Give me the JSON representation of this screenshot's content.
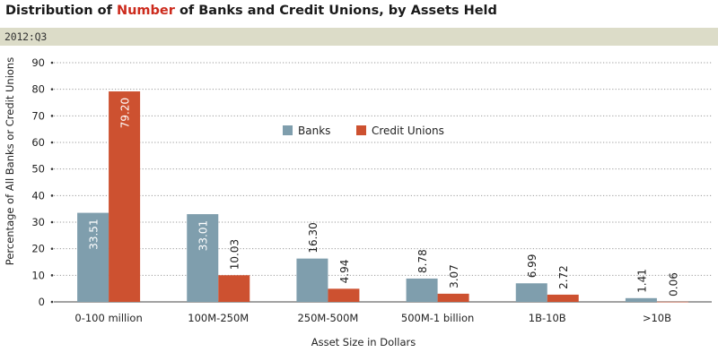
{
  "header": {
    "title_pre": "Distribution of ",
    "title_hl": "Number",
    "title_post": " of Banks and Credit Unions, by Assets Held",
    "period": "2012:Q3"
  },
  "colors": {
    "banks": "#7f9ead",
    "credit_unions": "#cd5130",
    "highlight": "#cc2a1c",
    "subbar": "#dcdcc8"
  },
  "chart_data": {
    "type": "bar",
    "title": "Distribution of Number of Banks and Credit Unions, by Assets Held",
    "subtitle": "2012:Q3",
    "categories": [
      "0-100 million",
      "100M-250M",
      "250M-500M",
      "500M-1 billion",
      "1B-10B",
      ">10B"
    ],
    "series": [
      {
        "name": "Banks",
        "values": [
          33.51,
          33.01,
          16.3,
          8.78,
          6.99,
          1.41
        ],
        "labels": [
          "33.51",
          "33.01",
          "16.30",
          "8.78",
          "6.99",
          "1.41"
        ]
      },
      {
        "name": "Credit Unions",
        "values": [
          79.2,
          10.03,
          4.94,
          3.07,
          2.72,
          0.06
        ],
        "labels": [
          "79.20",
          "10.03",
          "4.94",
          "3.07",
          "2.72",
          "0.06"
        ]
      }
    ],
    "xlabel": "Asset Size in Dollars",
    "ylabel": "Percentage of All Banks or Credit Unions",
    "ylim": [
      0,
      90
    ],
    "yticks": [
      "0",
      "10",
      "20",
      "30",
      "40",
      "50",
      "60",
      "70",
      "80",
      "90"
    ],
    "grid": true,
    "legend": "top-center"
  }
}
